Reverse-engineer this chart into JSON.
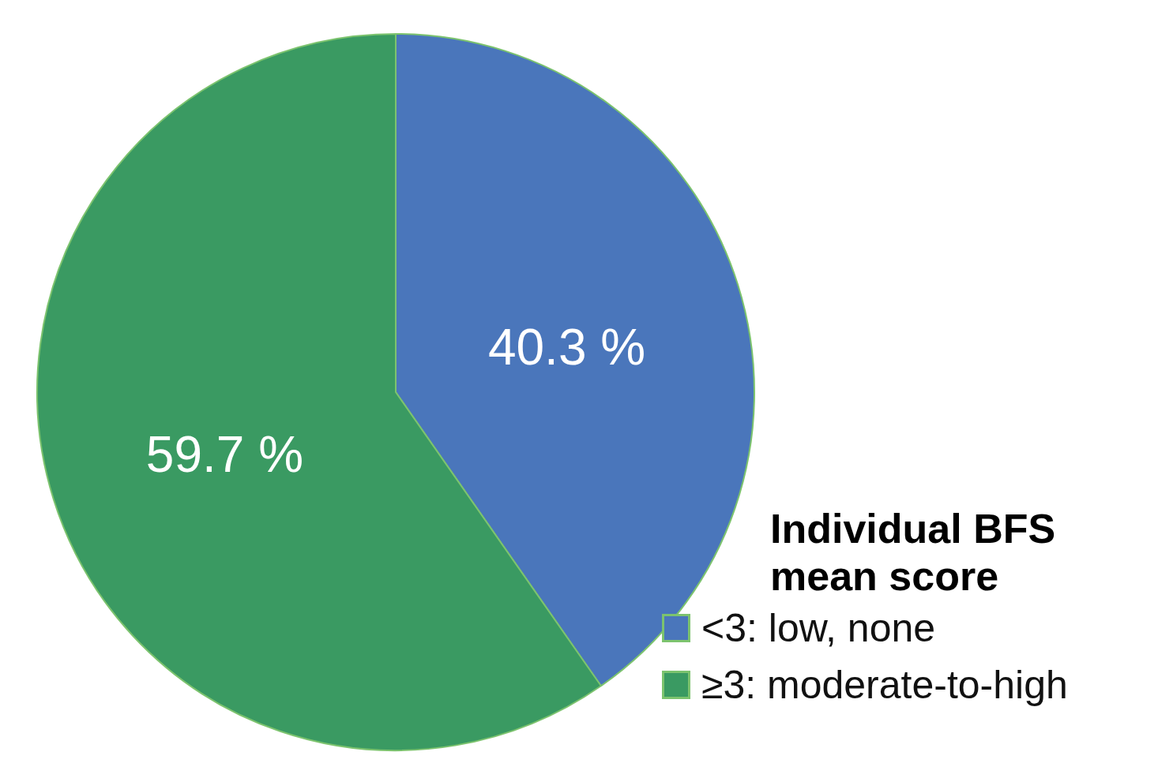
{
  "chart_data": {
    "type": "pie",
    "legend_title": "Individual BFS mean score",
    "legend": "bottom right",
    "categories": [
      "<3: low, none",
      "≥3: moderate-to-high"
    ],
    "values": [
      40.3,
      59.7
    ],
    "colors": [
      "#4a76bb",
      "#3a9a62"
    ],
    "value_labels": [
      "40.3 %",
      "59.7 %"
    ]
  }
}
